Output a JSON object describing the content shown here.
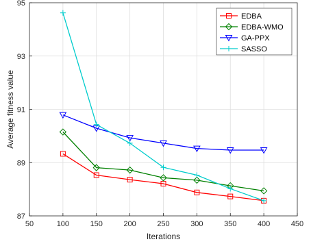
{
  "chart_data": {
    "type": "line",
    "title": "",
    "xlabel": "Iterations",
    "ylabel": "Average fitness value",
    "xlim": [
      50,
      450
    ],
    "ylim": [
      87,
      95
    ],
    "xticks": [
      50,
      100,
      150,
      200,
      250,
      300,
      350,
      400,
      450
    ],
    "yticks": [
      87,
      89,
      91,
      93,
      95
    ],
    "grid": true,
    "legend_position": "top-right",
    "x": [
      100,
      150,
      200,
      250,
      300,
      350,
      400
    ],
    "series": [
      {
        "name": "EDBA",
        "color": "#ff0000",
        "marker": "square",
        "values": [
          89.33,
          88.53,
          88.36,
          88.21,
          87.88,
          87.73,
          87.57
        ]
      },
      {
        "name": "EDBA-WMO",
        "color": "#008000",
        "marker": "diamond",
        "values": [
          90.15,
          88.81,
          88.72,
          88.43,
          88.34,
          88.13,
          87.94
        ]
      },
      {
        "name": "GA-PPX",
        "color": "#0000ff",
        "marker": "triangle-down",
        "values": [
          90.79,
          90.29,
          89.93,
          89.73,
          89.53,
          89.47,
          89.47
        ]
      },
      {
        "name": "SASSO",
        "color": "#00cccc",
        "marker": "plus",
        "values": [
          94.62,
          90.43,
          89.73,
          88.82,
          88.53,
          88.02,
          87.57
        ]
      }
    ]
  }
}
